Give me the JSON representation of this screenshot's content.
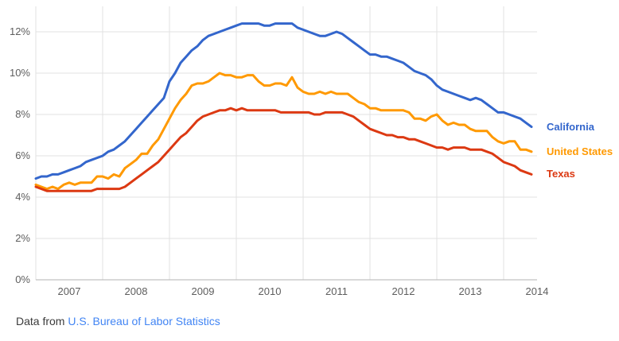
{
  "chart_data": {
    "type": "line",
    "title": "",
    "xlabel": "",
    "ylabel": "",
    "x_unit": "month",
    "x_range": [
      "2007-01",
      "2014-06"
    ],
    "x_tick_labels": [
      "2007",
      "2008",
      "2009",
      "2010",
      "2011",
      "2012",
      "2013",
      "2014"
    ],
    "y_ticks": [
      0,
      2,
      4,
      6,
      8,
      10,
      12
    ],
    "y_tick_labels": [
      "0%",
      "2%",
      "4%",
      "6%",
      "8%",
      "10%",
      "12%"
    ],
    "ylim": [
      0,
      13.2
    ],
    "grid": true,
    "legend_position": "right-of-line-ends",
    "gridline_color": "#e2e2e2",
    "axis_line_color": "#b3b3b3",
    "series": [
      {
        "name": "California",
        "color": "#3366CC",
        "values": [
          4.9,
          5.0,
          5.0,
          5.1,
          5.1,
          5.2,
          5.3,
          5.4,
          5.5,
          5.7,
          5.8,
          5.9,
          6.0,
          6.2,
          6.3,
          6.5,
          6.7,
          7.0,
          7.3,
          7.6,
          7.9,
          8.2,
          8.5,
          8.8,
          9.6,
          10.0,
          10.5,
          10.8,
          11.1,
          11.3,
          11.6,
          11.8,
          11.9,
          12.0,
          12.1,
          12.2,
          12.3,
          12.4,
          12.4,
          12.4,
          12.4,
          12.3,
          12.3,
          12.4,
          12.4,
          12.4,
          12.4,
          12.2,
          12.1,
          12.0,
          11.9,
          11.8,
          11.8,
          11.9,
          12.0,
          11.9,
          11.7,
          11.5,
          11.3,
          11.1,
          10.9,
          10.9,
          10.8,
          10.8,
          10.7,
          10.6,
          10.5,
          10.3,
          10.1,
          10.0,
          9.9,
          9.7,
          9.4,
          9.2,
          9.1,
          9.0,
          8.9,
          8.8,
          8.7,
          8.8,
          8.7,
          8.5,
          8.3,
          8.1,
          8.1,
          8.0,
          7.9,
          7.8,
          7.6,
          7.4
        ]
      },
      {
        "name": "United States",
        "color": "#FF9900",
        "values": [
          4.6,
          4.5,
          4.4,
          4.5,
          4.4,
          4.6,
          4.7,
          4.6,
          4.7,
          4.7,
          4.7,
          5.0,
          5.0,
          4.9,
          5.1,
          5.0,
          5.4,
          5.6,
          5.8,
          6.1,
          6.1,
          6.5,
          6.8,
          7.3,
          7.8,
          8.3,
          8.7,
          9.0,
          9.4,
          9.5,
          9.5,
          9.6,
          9.8,
          10.0,
          9.9,
          9.9,
          9.8,
          9.8,
          9.9,
          9.9,
          9.6,
          9.4,
          9.4,
          9.5,
          9.5,
          9.4,
          9.8,
          9.3,
          9.1,
          9.0,
          9.0,
          9.1,
          9.0,
          9.1,
          9.0,
          9.0,
          9.0,
          8.8,
          8.6,
          8.5,
          8.3,
          8.3,
          8.2,
          8.2,
          8.2,
          8.2,
          8.2,
          8.1,
          7.8,
          7.8,
          7.7,
          7.9,
          8.0,
          7.7,
          7.5,
          7.6,
          7.5,
          7.5,
          7.3,
          7.2,
          7.2,
          7.2,
          6.9,
          6.7,
          6.6,
          6.7,
          6.7,
          6.3,
          6.3,
          6.2
        ]
      },
      {
        "name": "Texas",
        "color": "#DC3912",
        "values": [
          4.5,
          4.4,
          4.3,
          4.3,
          4.3,
          4.3,
          4.3,
          4.3,
          4.3,
          4.3,
          4.3,
          4.4,
          4.4,
          4.4,
          4.4,
          4.4,
          4.5,
          4.7,
          4.9,
          5.1,
          5.3,
          5.5,
          5.7,
          6.0,
          6.3,
          6.6,
          6.9,
          7.1,
          7.4,
          7.7,
          7.9,
          8.0,
          8.1,
          8.2,
          8.2,
          8.3,
          8.2,
          8.3,
          8.2,
          8.2,
          8.2,
          8.2,
          8.2,
          8.2,
          8.1,
          8.1,
          8.1,
          8.1,
          8.1,
          8.1,
          8.0,
          8.0,
          8.1,
          8.1,
          8.1,
          8.1,
          8.0,
          7.9,
          7.7,
          7.5,
          7.3,
          7.2,
          7.1,
          7.0,
          7.0,
          6.9,
          6.9,
          6.8,
          6.8,
          6.7,
          6.6,
          6.5,
          6.4,
          6.4,
          6.3,
          6.4,
          6.4,
          6.4,
          6.3,
          6.3,
          6.3,
          6.2,
          6.1,
          5.9,
          5.7,
          5.6,
          5.5,
          5.3,
          5.2,
          5.1
        ]
      }
    ]
  },
  "footer": {
    "prefix": "Data from ",
    "link_text": "U.S. Bureau of Labor Statistics",
    "link_color": "#4285f4"
  }
}
